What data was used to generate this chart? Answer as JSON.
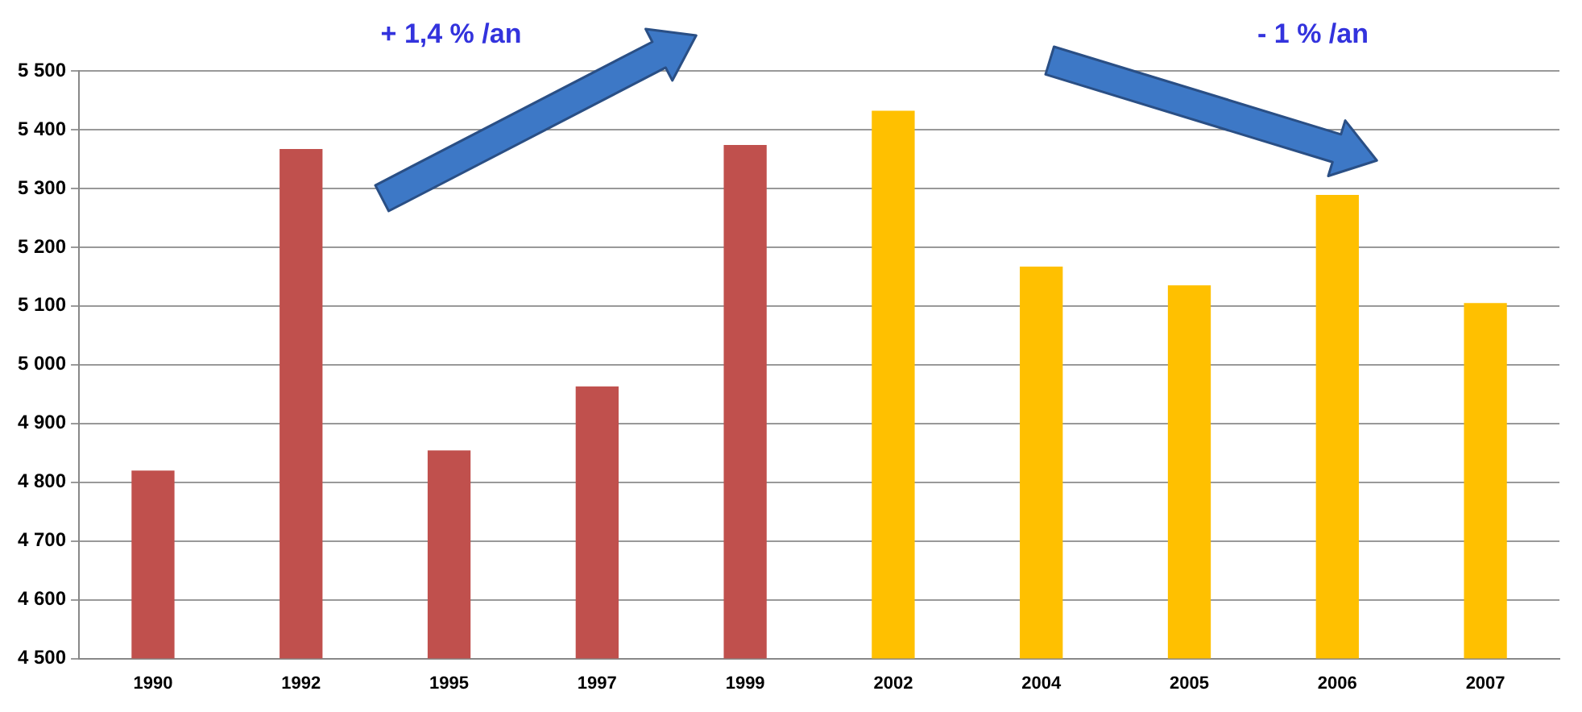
{
  "chart_data": {
    "type": "bar",
    "categories": [
      "1990",
      "1992",
      "1995",
      "1997",
      "1999",
      "2002",
      "2004",
      "2005",
      "2006",
      "2007"
    ],
    "values": [
      4820,
      5367,
      4854,
      4963,
      5374,
      5432,
      5167,
      5135,
      5289,
      5105
    ],
    "colors": [
      "#c0504d",
      "#c0504d",
      "#c0504d",
      "#c0504d",
      "#c0504d",
      "#ffc000",
      "#ffc000",
      "#ffc000",
      "#ffc000",
      "#ffc000"
    ],
    "ylim": [
      4500,
      5500
    ],
    "yticks": [
      {
        "value": 4500,
        "label": "4 500"
      },
      {
        "value": 4600,
        "label": "4 600"
      },
      {
        "value": 4700,
        "label": "4 700"
      },
      {
        "value": 4800,
        "label": "4 800"
      },
      {
        "value": 4900,
        "label": "4 900"
      },
      {
        "value": 5000,
        "label": "5 000"
      },
      {
        "value": 5100,
        "label": "5 100"
      },
      {
        "value": 5200,
        "label": "5 200"
      },
      {
        "value": 5300,
        "label": "5 300"
      },
      {
        "value": 5400,
        "label": "5 400"
      },
      {
        "value": 5500,
        "label": "5 500"
      }
    ],
    "grid": "y",
    "legend": false,
    "annotations": [
      "+ 1,4 % /an",
      "- 1 % /an"
    ]
  }
}
